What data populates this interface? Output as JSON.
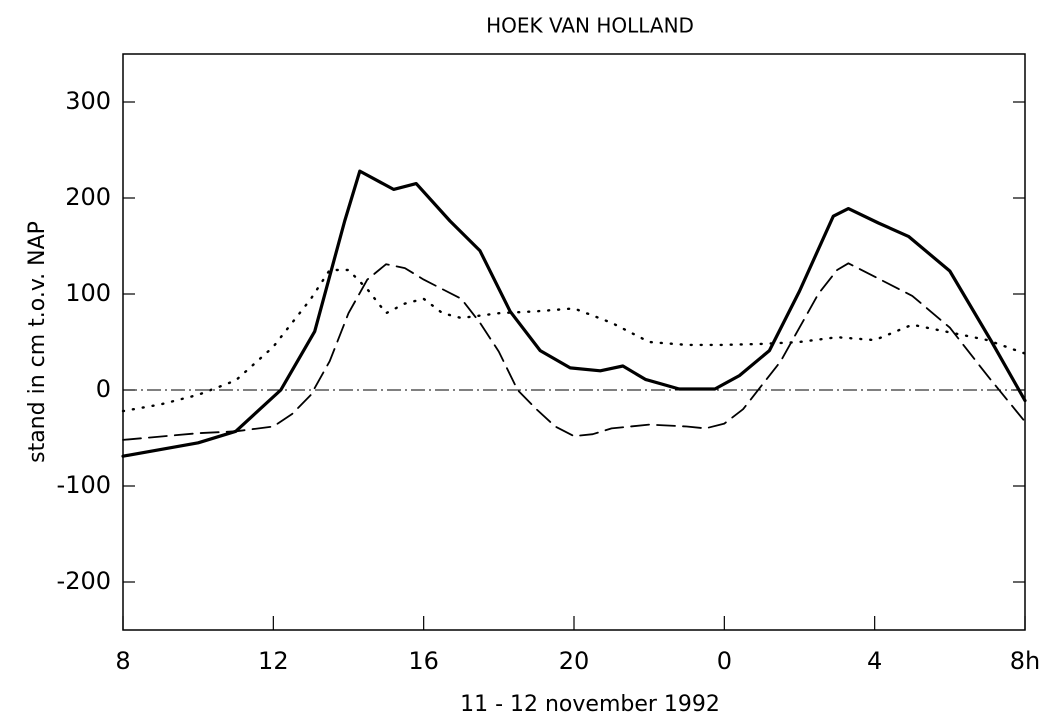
{
  "chart_data": {
    "type": "line",
    "title": "HOEK VAN HOLLAND",
    "xlabel": "11 - 12 november 1992",
    "ylabel": "stand in cm t.o.v. NAP",
    "xlim": [
      8,
      32
    ],
    "xticks": [
      8,
      12,
      16,
      20,
      {
        "value": 24,
        "label": "0"
      },
      {
        "value": 28,
        "label": "4"
      },
      {
        "value": 32,
        "label": "8h"
      }
    ],
    "ylim": [
      -250,
      350
    ],
    "yticks": [
      -200,
      -100,
      0,
      100,
      200,
      300
    ],
    "reference_line": 0,
    "grid": false,
    "series": [
      {
        "color": "#000000",
        "dash": "solid",
        "x": [
          8,
          10,
          11,
          12.2,
          13.1,
          13.9,
          14.3,
          15.2,
          15.8,
          16.7,
          17.5,
          18.3,
          19.1,
          19.9,
          20.7,
          21.3,
          21.9,
          22.8,
          23.75,
          24.4,
          25.2,
          26,
          26.9,
          27.3,
          28.1,
          28.9,
          30,
          31.1,
          32
        ],
        "values": [
          -69,
          -55,
          -43,
          0,
          61,
          176,
          228,
          209,
          215,
          176,
          145,
          82,
          41,
          23,
          20,
          25,
          11,
          1,
          1,
          15,
          41,
          103,
          181,
          189,
          174,
          160,
          124,
          51,
          -11
        ]
      },
      {
        "color": "#000000",
        "dash": "dashed",
        "x": [
          8,
          10,
          11,
          12,
          12.5,
          13,
          13.5,
          14,
          14.5,
          15,
          15.5,
          16,
          17,
          17.5,
          18,
          18.5,
          19,
          19.5,
          20,
          20.5,
          21,
          22,
          23,
          23.5,
          24,
          24.5,
          25,
          25.5,
          26,
          26.5,
          27,
          27.3,
          28,
          29,
          30,
          31,
          32
        ],
        "values": [
          -52,
          -45,
          -43,
          -38,
          -25,
          -5,
          30,
          80,
          115,
          131,
          127,
          115,
          95,
          70,
          40,
          0,
          -20,
          -38,
          -48,
          -46,
          -40,
          -36,
          -38,
          -40,
          -35,
          -20,
          5,
          30,
          65,
          100,
          125,
          132,
          118,
          98,
          65,
          15,
          -33
        ]
      },
      {
        "color": "#000000",
        "dash": "dotted",
        "x": [
          8,
          9,
          10,
          11,
          12,
          13,
          13.5,
          14,
          14.5,
          15,
          15.5,
          16,
          16.5,
          17,
          18,
          19,
          20,
          21,
          22,
          23,
          24,
          25,
          26,
          27,
          28,
          29,
          30,
          31,
          32
        ],
        "values": [
          -22,
          -15,
          -5,
          10,
          45,
          95,
          125,
          125,
          105,
          80,
          90,
          95,
          80,
          75,
          80,
          82,
          85,
          70,
          50,
          47,
          47,
          48,
          50,
          55,
          52,
          68,
          60,
          52,
          38
        ]
      }
    ]
  }
}
